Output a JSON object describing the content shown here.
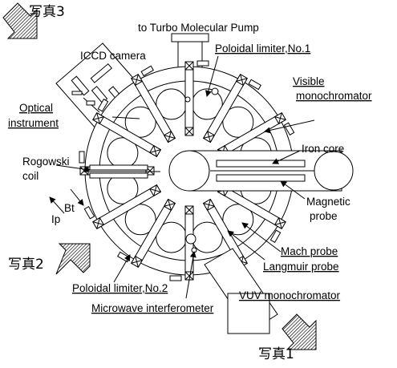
{
  "labels": {
    "photo1": "写真1",
    "photo2": "写真2",
    "photo3": "写真3",
    "turbo": "to Turbo Molecular Pump",
    "iccd": "ICCD camera",
    "poloidal1": "Poloidal limiter,No.1",
    "visible1": "Visible",
    "visible2": "monochromator",
    "optical1": "Optical",
    "optical2": "instrument",
    "iron": "Iron core",
    "rogowski1": "Rogowski",
    "rogowski2": "coil",
    "magnetic1": "Magnetic",
    "magnetic2": "probe",
    "bt": "Bt",
    "ip": "Ip",
    "mach": "Mach probe",
    "langmuir": "Langmuir probe",
    "poloidal2": "Poloidal limiter,No.2",
    "vuv": "VUV monochromator",
    "microwave": "Microwave interferometer"
  }
}
